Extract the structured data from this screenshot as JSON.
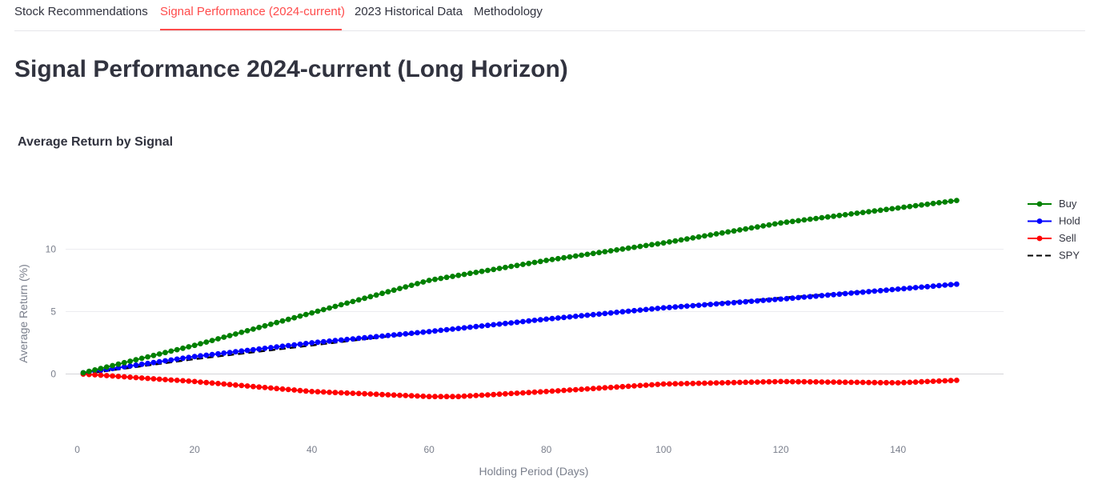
{
  "tabs": [
    {
      "label": "Stock Recommendations",
      "active": false
    },
    {
      "label": "Signal Performance (2024-current)",
      "active": true
    },
    {
      "label": "2023 Historical Data",
      "active": false
    },
    {
      "label": "Methodology",
      "active": false
    }
  ],
  "page_title": "Signal Performance 2024-current (Long Horizon)",
  "colors": {
    "accent": "#ff4b4b",
    "buy": "#008000",
    "hold": "#0000ff",
    "sell": "#ff0000",
    "spy": "#000000"
  },
  "chart_data": {
    "type": "line",
    "title": "Average Return by Signal",
    "xlabel": "Holding Period (Days)",
    "ylabel": "Average Return (%)",
    "x_ticks": [
      0,
      20,
      40,
      60,
      80,
      100,
      120,
      140
    ],
    "y_ticks": [
      0,
      5,
      10
    ],
    "xlim": [
      -2,
      158
    ],
    "ylim": [
      -4,
      16.5
    ],
    "x_range": [
      1,
      150
    ],
    "legend_position": "right",
    "series": [
      {
        "name": "Buy",
        "color": "#008000",
        "dash": false,
        "markers": true,
        "knots": [
          [
            1,
            0.1
          ],
          [
            20,
            2.3
          ],
          [
            40,
            4.9
          ],
          [
            60,
            7.5
          ],
          [
            80,
            9.1
          ],
          [
            100,
            10.5
          ],
          [
            120,
            12.1
          ],
          [
            140,
            13.3
          ],
          [
            150,
            13.9
          ]
        ]
      },
      {
        "name": "Hold",
        "color": "#0000ff",
        "dash": false,
        "markers": true,
        "knots": [
          [
            1,
            0.1
          ],
          [
            20,
            1.4
          ],
          [
            40,
            2.5
          ],
          [
            60,
            3.4
          ],
          [
            80,
            4.4
          ],
          [
            100,
            5.3
          ],
          [
            120,
            6.0
          ],
          [
            140,
            6.8
          ],
          [
            150,
            7.2
          ]
        ]
      },
      {
        "name": "Sell",
        "color": "#ff0000",
        "dash": false,
        "markers": true,
        "knots": [
          [
            1,
            0.0
          ],
          [
            20,
            -0.6
          ],
          [
            40,
            -1.4
          ],
          [
            60,
            -1.8
          ],
          [
            65,
            -1.8
          ],
          [
            80,
            -1.4
          ],
          [
            100,
            -0.8
          ],
          [
            120,
            -0.6
          ],
          [
            140,
            -0.7
          ],
          [
            150,
            -0.5
          ]
        ]
      },
      {
        "name": "SPY",
        "color": "#000000",
        "dash": true,
        "markers": false,
        "knots": [
          [
            1,
            0.0
          ],
          [
            20,
            1.2
          ],
          [
            40,
            2.3
          ],
          [
            60,
            3.4
          ],
          [
            80,
            4.4
          ],
          [
            100,
            5.3
          ],
          [
            120,
            6.1
          ],
          [
            140,
            6.8
          ],
          [
            150,
            7.2
          ]
        ]
      }
    ]
  }
}
